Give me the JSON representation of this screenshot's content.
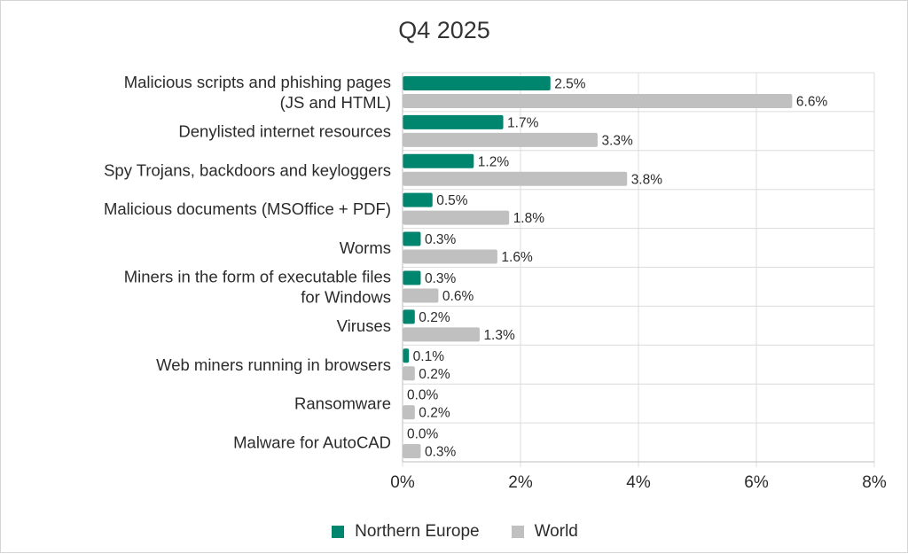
{
  "chart_data": {
    "type": "bar",
    "orientation": "horizontal",
    "title": "Q4 2025",
    "categories": [
      [
        "Malicious scripts and phishing pages",
        "(JS and HTML)"
      ],
      [
        "Denylisted internet resources"
      ],
      [
        "Spy Trojans, backdoors and keyloggers"
      ],
      [
        "Malicious documents (MSOffice + PDF)"
      ],
      [
        "Worms"
      ],
      [
        "Miners in the form of executable files",
        "for Windows"
      ],
      [
        "Viruses"
      ],
      [
        "Web miners running in browsers"
      ],
      [
        "Ransomware"
      ],
      [
        "Malware for AutoCAD"
      ]
    ],
    "series": [
      {
        "name": "Northern Europe",
        "color": "#00856f",
        "values": [
          2.5,
          1.7,
          1.2,
          0.5,
          0.3,
          0.3,
          0.2,
          0.1,
          0.0,
          0.0
        ],
        "labels": [
          "2.5%",
          "1.7%",
          "1.2%",
          "0.5%",
          "0.3%",
          "0.3%",
          "0.2%",
          "0.1%",
          "0.0%",
          "0.0%"
        ]
      },
      {
        "name": "World",
        "color": "#c0c0c0",
        "values": [
          6.6,
          3.3,
          3.8,
          1.8,
          1.6,
          0.6,
          1.3,
          0.2,
          0.2,
          0.3
        ],
        "labels": [
          "6.6%",
          "3.3%",
          "3.8%",
          "1.8%",
          "1.6%",
          "0.6%",
          "1.3%",
          "0.2%",
          "0.2%",
          "0.3%"
        ]
      }
    ],
    "xlim": [
      0,
      8
    ],
    "xticks": [
      0,
      2,
      4,
      6,
      8
    ],
    "xtick_labels": [
      "0%",
      "2%",
      "4%",
      "6%",
      "8%"
    ],
    "xlabel": "",
    "ylabel": "",
    "grid": true,
    "legend_position": "bottom-center"
  }
}
